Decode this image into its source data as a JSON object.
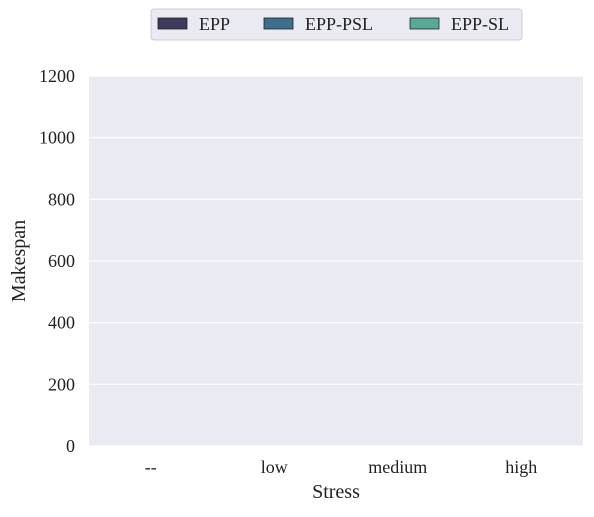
{
  "chart_data": {
    "type": "bar",
    "xlabel": "Stress",
    "ylabel": "Makespan",
    "categories": [
      "--",
      "low",
      "medium",
      "high"
    ],
    "ylim": [
      0,
      1200
    ],
    "yticks": [
      0,
      200,
      400,
      600,
      800,
      1000,
      1200
    ],
    "series": [
      {
        "name": "EPP",
        "values": [
          0,
          0,
          0,
          0
        ],
        "color": "#3e3a5c"
      },
      {
        "name": "EPP-PSL",
        "values": [
          0,
          0,
          0,
          0
        ],
        "color": "#3f6e8c"
      },
      {
        "name": "EPP-SL",
        "values": [
          0,
          0,
          0,
          0
        ],
        "color": "#5aa898"
      }
    ],
    "grid": true,
    "legend_position": "top-center",
    "background_color": "#eaeaf2",
    "grid_color": "#ffffff"
  }
}
